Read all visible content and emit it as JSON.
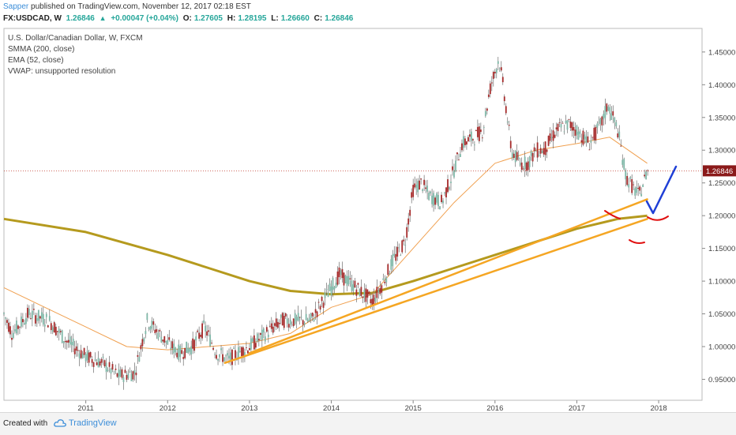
{
  "header": {
    "author": "Sapper",
    "published_text": " published on TradingView.com, November 12, 2017 02:18 EST",
    "symbol": "FX:USDCAD, W",
    "last": "1.26846",
    "change": "+0.00047 (+0.04%)",
    "o_label": "O:",
    "o_value": "1.27605",
    "h_label": "H:",
    "h_value": "1.28195",
    "l_label": "L:",
    "l_value": "1.26660",
    "c_label": "C:",
    "c_value": "1.26846"
  },
  "legend": {
    "title": "U.S. Dollar/Canadian Dollar, W, FXCM",
    "smma": "SMMA (200, close)",
    "ema": "EMA (52, close)",
    "vwap": "VWAP: unsupported resolution"
  },
  "footer": {
    "created_with": "Created with",
    "brand": "TradingView"
  },
  "colors": {
    "candle_up": "#7fb8a8",
    "candle_down": "#a52a2a",
    "smma": "#b59a1e",
    "ema": "#f0a050",
    "trendline": "#f5a623",
    "price_line": "#c0392b",
    "annotation_red": "#e01010",
    "annotation_blue": "#1f3fd6"
  },
  "chart_data": {
    "type": "candlestick",
    "x_range": [
      2010.0,
      2018.53
    ],
    "ylim": [
      0.918,
      1.486
    ],
    "x_ticks": [
      "2011",
      "2012",
      "2013",
      "2014",
      "2015",
      "2016",
      "2017",
      "2018"
    ],
    "y_ticks": [
      "1.45000",
      "1.40000",
      "1.35000",
      "1.30000",
      "1.25000",
      "1.20000",
      "1.15000",
      "1.10000",
      "1.05000",
      "1.00000",
      "0.95000"
    ],
    "current_price": 1.26846,
    "current_price_label": "1.26846",
    "price_anchors": [
      [
        2010.0,
        1.05
      ],
      [
        2010.1,
        1.02
      ],
      [
        2010.3,
        1.05
      ],
      [
        2010.55,
        1.04
      ],
      [
        2010.75,
        1.01
      ],
      [
        2011.0,
        0.985
      ],
      [
        2011.2,
        0.975
      ],
      [
        2011.4,
        0.955
      ],
      [
        2011.6,
        0.96
      ],
      [
        2011.75,
        1.04
      ],
      [
        2012.0,
        1.005
      ],
      [
        2012.15,
        0.99
      ],
      [
        2012.3,
        1.0
      ],
      [
        2012.45,
        1.03
      ],
      [
        2012.6,
        0.99
      ],
      [
        2012.75,
        0.98
      ],
      [
        2012.85,
        0.99
      ],
      [
        2013.0,
        1.0
      ],
      [
        2013.2,
        1.02
      ],
      [
        2013.4,
        1.04
      ],
      [
        2013.6,
        1.04
      ],
      [
        2013.75,
        1.04
      ],
      [
        2013.9,
        1.07
      ],
      [
        2014.0,
        1.09
      ],
      [
        2014.1,
        1.11
      ],
      [
        2014.3,
        1.09
      ],
      [
        2014.5,
        1.07
      ],
      [
        2014.6,
        1.09
      ],
      [
        2014.75,
        1.13
      ],
      [
        2014.9,
        1.16
      ],
      [
        2015.0,
        1.24
      ],
      [
        2015.1,
        1.25
      ],
      [
        2015.2,
        1.23
      ],
      [
        2015.35,
        1.22
      ],
      [
        2015.5,
        1.27
      ],
      [
        2015.6,
        1.31
      ],
      [
        2015.75,
        1.32
      ],
      [
        2015.85,
        1.33
      ],
      [
        2015.95,
        1.4
      ],
      [
        2016.05,
        1.44
      ],
      [
        2016.12,
        1.38
      ],
      [
        2016.2,
        1.3
      ],
      [
        2016.3,
        1.28
      ],
      [
        2016.4,
        1.28
      ],
      [
        2016.5,
        1.3
      ],
      [
        2016.6,
        1.3
      ],
      [
        2016.75,
        1.33
      ],
      [
        2016.9,
        1.34
      ],
      [
        2017.0,
        1.33
      ],
      [
        2017.15,
        1.31
      ],
      [
        2017.3,
        1.34
      ],
      [
        2017.38,
        1.37
      ],
      [
        2017.5,
        1.33
      ],
      [
        2017.6,
        1.26
      ],
      [
        2017.7,
        1.24
      ],
      [
        2017.76,
        1.23
      ],
      [
        2017.84,
        1.26
      ],
      [
        2017.86,
        1.268
      ]
    ],
    "smma_points": [
      [
        2010.0,
        1.195
      ],
      [
        2011.0,
        1.175
      ],
      [
        2012.0,
        1.14
      ],
      [
        2012.5,
        1.12
      ],
      [
        2013.0,
        1.1
      ],
      [
        2013.5,
        1.085
      ],
      [
        2014.0,
        1.08
      ],
      [
        2014.5,
        1.082
      ],
      [
        2015.0,
        1.1
      ],
      [
        2015.5,
        1.12
      ],
      [
        2016.0,
        1.14
      ],
      [
        2016.5,
        1.16
      ],
      [
        2017.0,
        1.18
      ],
      [
        2017.5,
        1.195
      ],
      [
        2017.86,
        1.2
      ]
    ],
    "ema_points": [
      [
        2010.0,
        1.09
      ],
      [
        2010.5,
        1.06
      ],
      [
        2011.0,
        1.03
      ],
      [
        2011.5,
        1.0
      ],
      [
        2012.0,
        0.995
      ],
      [
        2012.5,
        1.0
      ],
      [
        2013.0,
        1.005
      ],
      [
        2013.5,
        1.02
      ],
      [
        2014.0,
        1.06
      ],
      [
        2014.5,
        1.08
      ],
      [
        2015.0,
        1.15
      ],
      [
        2015.5,
        1.22
      ],
      [
        2016.0,
        1.28
      ],
      [
        2016.5,
        1.3
      ],
      [
        2017.0,
        1.31
      ],
      [
        2017.4,
        1.32
      ],
      [
        2017.86,
        1.28
      ]
    ],
    "trendlines": [
      {
        "from": [
          2012.7,
          0.975
        ],
        "to": [
          2017.86,
          1.195
        ]
      },
      {
        "from": [
          2013.0,
          0.99
        ],
        "to": [
          2017.86,
          1.225
        ]
      }
    ]
  }
}
